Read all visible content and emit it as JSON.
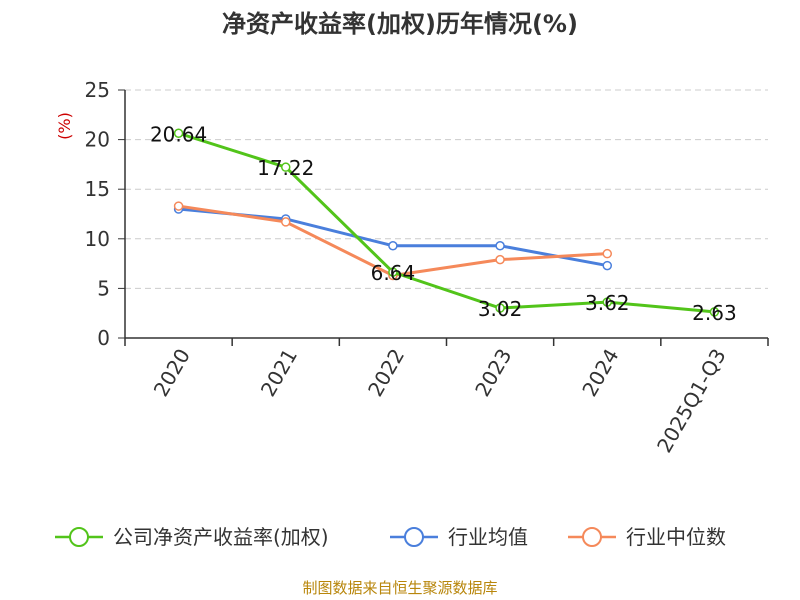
{
  "chart_data": {
    "type": "line",
    "title": "净资产收益率(加权)历年情况(%)",
    "ylabel": "(%)",
    "xlabel": "",
    "categories": [
      "2020",
      "2021",
      "2022",
      "2023",
      "2024",
      "2025Q1-Q3"
    ],
    "ylim": [
      0,
      25
    ],
    "yticks": [
      0,
      5,
      10,
      15,
      20,
      25
    ],
    "grid": true,
    "legend_position": "bottom",
    "series": [
      {
        "name": "公司净资产收益率(加权)",
        "color": "#52c41a",
        "values": [
          20.64,
          17.22,
          6.64,
          3.02,
          3.62,
          2.63
        ],
        "labels": [
          "20.64",
          "17.22",
          "6.64",
          "3.02",
          "3.62",
          "2.63"
        ]
      },
      {
        "name": "行业均值",
        "color": "#4a7fdc",
        "values": [
          13.0,
          12.0,
          9.3,
          9.3,
          7.3,
          null
        ]
      },
      {
        "name": "行业中位数",
        "color": "#f5895a",
        "values": [
          13.3,
          11.7,
          6.3,
          7.9,
          8.5,
          null
        ]
      }
    ],
    "source": "制图数据来自恒生聚源数据库"
  }
}
